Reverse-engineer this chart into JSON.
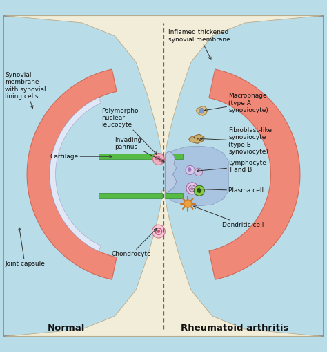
{
  "bg_color": "#b8dde8",
  "bone_color": "#f2edd8",
  "capsule_color": "#f08878",
  "capsule_edge": "#d06858",
  "cartilage_color": "#55bb44",
  "cartilage_edge": "#338833",
  "joint_space_color": "#c0d8ee",
  "pannus_color": "#a8c4e0",
  "synovial_lining_color": "#e0e8f8",
  "title_normal": "Normal",
  "title_ra": "Rheumatoid arthritis",
  "labels": {
    "synovial_membrane": "Synovial\nmembrane\nwith synovial\nlining cells",
    "inflamed_synovial": "Inflamed thickened\nsynovial membrane",
    "macrophage": "Macrophage\n(type A\nsynoviocyte)",
    "polymorpho": "Polymorpho-\nnuclear\nleucocyte",
    "invading_pannus": "Invading\npannus",
    "cartilage": "Cartilage",
    "chondrocyte": "Chondrocyte",
    "joint_capsule": "Joint capsule",
    "fibroblast": "Fibroblast-like\nsynoviocyte\n(type B\nsynoviocyte)",
    "lymphocyte": "Lymphocyte\nT and B",
    "plasma_cell": "Plasma cell",
    "dendritic_cell": "Dendritic cell"
  }
}
